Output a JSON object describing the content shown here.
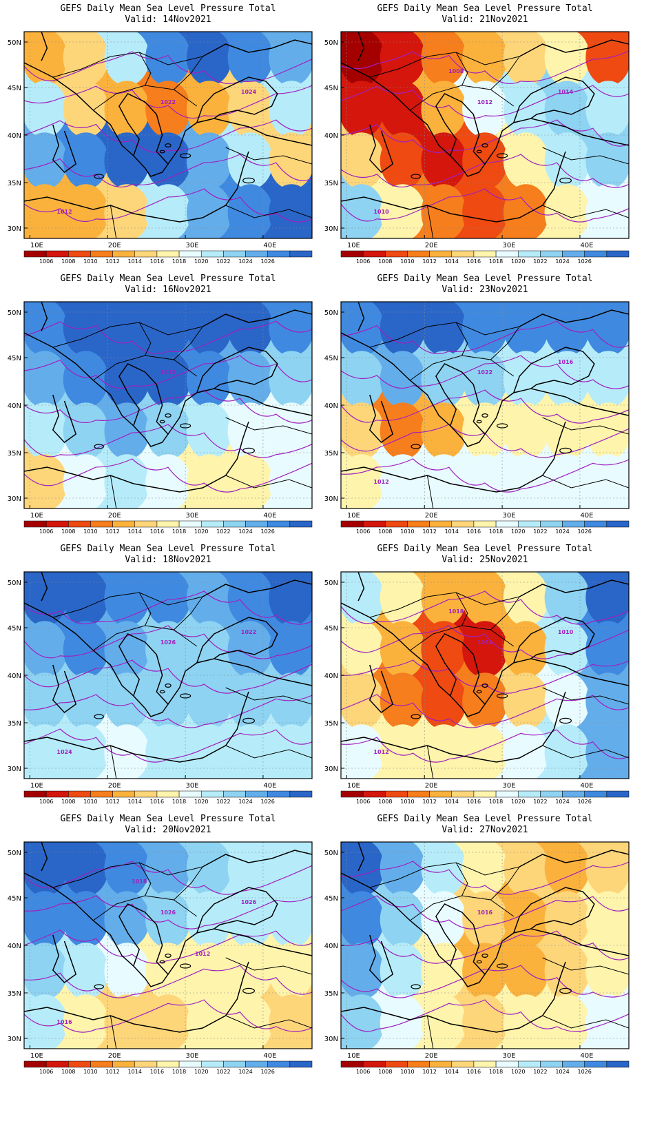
{
  "colorbar": {
    "labels": [
      "1006",
      "1008",
      "1010",
      "1012",
      "1014",
      "1016",
      "1018",
      "1020",
      "1022",
      "1024",
      "1026"
    ],
    "colors": [
      "#a50000",
      "#d4160c",
      "#ee4a12",
      "#f77e1c",
      "#fbb23c",
      "#fed67a",
      "#fff4ac",
      "#e8fbff",
      "#b6ecfa",
      "#8ed3f2",
      "#63aeea",
      "#3f8ae0",
      "#2a66c8"
    ]
  },
  "lat_labels": [
    "50N",
    "45N",
    "40N",
    "35N",
    "30N"
  ],
  "lon_labels": [
    "10E",
    "20E",
    "30E",
    "40E"
  ],
  "panels": [
    {
      "title": "GEFS Daily Mean Sea Level Pressure Total",
      "valid": "Valid: 14Nov2021",
      "levels": [
        4,
        5,
        8,
        11,
        12,
        11,
        10,
        8,
        5,
        4,
        3,
        4,
        5,
        8,
        10,
        11,
        12,
        12,
        10,
        8,
        5,
        4,
        4,
        5,
        8,
        10,
        11,
        12
      ],
      "contour_labels": [
        "1022",
        "1024",
        "1012"
      ]
    },
    {
      "title": "GEFS Daily Mean Sea Level Pressure Total",
      "valid": "Valid: 21Nov2021",
      "levels": [
        0,
        1,
        3,
        4,
        5,
        6,
        2,
        1,
        1,
        4,
        7,
        8,
        9,
        8,
        5,
        2,
        1,
        2,
        6,
        8,
        9,
        9,
        6,
        3,
        2,
        3,
        6,
        7
      ],
      "contour_labels": [
        "1012",
        "1014",
        "1010",
        "1008"
      ]
    },
    {
      "title": "GEFS Daily Mean Sea Level Pressure Total",
      "valid": "Valid: 16Nov2021",
      "levels": [
        11,
        12,
        12,
        12,
        12,
        12,
        11,
        10,
        11,
        12,
        12,
        11,
        10,
        9,
        8,
        9,
        10,
        9,
        8,
        7,
        7,
        5,
        7,
        8,
        7,
        6,
        6,
        7
      ],
      "contour_labels": [
        "1022"
      ]
    },
    {
      "title": "GEFS Daily Mean Sea Level Pressure Total",
      "valid": "Valid: 23Nov2021",
      "levels": [
        11,
        12,
        12,
        11,
        11,
        11,
        11,
        9,
        10,
        9,
        9,
        8,
        8,
        8,
        5,
        3,
        4,
        6,
        6,
        6,
        6,
        6,
        7,
        7,
        7,
        7,
        7,
        7
      ],
      "contour_labels": [
        "1022",
        "1016",
        "1012"
      ]
    },
    {
      "title": "GEFS Daily Mean Sea Level Pressure Total",
      "valid": "Valid: 18Nov2021",
      "levels": [
        12,
        12,
        11,
        11,
        10,
        11,
        12,
        10,
        11,
        10,
        9,
        9,
        10,
        11,
        9,
        9,
        9,
        9,
        9,
        9,
        9,
        8,
        8,
        7,
        8,
        8,
        8,
        8
      ],
      "contour_labels": [
        "1026",
        "1022",
        "1024"
      ]
    },
    {
      "title": "GEFS Daily Mean Sea Level Pressure Total",
      "valid": "Valid: 25Nov2021",
      "levels": [
        8,
        6,
        4,
        4,
        6,
        9,
        12,
        6,
        4,
        2,
        1,
        4,
        8,
        11,
        5,
        3,
        2,
        3,
        5,
        7,
        10,
        7,
        6,
        6,
        6,
        7,
        8,
        10
      ],
      "contour_labels": [
        "1014",
        "1010",
        "1012",
        "1018"
      ]
    },
    {
      "title": "GEFS Daily Mean Sea Level Pressure Total",
      "valid": "Valid: 20Nov2021",
      "levels": [
        12,
        12,
        11,
        10,
        9,
        8,
        8,
        11,
        11,
        10,
        9,
        8,
        8,
        8,
        9,
        8,
        7,
        6,
        6,
        6,
        6,
        8,
        6,
        5,
        5,
        6,
        6,
        5
      ],
      "contour_labels": [
        "1026",
        "1026",
        "1016",
        "1018",
        "1012"
      ]
    },
    {
      "title": "GEFS Daily Mean Sea Level Pressure Total",
      "valid": "Valid: 27Nov2021",
      "levels": [
        12,
        10,
        8,
        6,
        5,
        4,
        5,
        11,
        9,
        7,
        5,
        4,
        5,
        6,
        10,
        8,
        6,
        4,
        4,
        5,
        6,
        9,
        7,
        6,
        5,
        6,
        6,
        7
      ],
      "contour_labels": [
        "1016"
      ]
    }
  ]
}
